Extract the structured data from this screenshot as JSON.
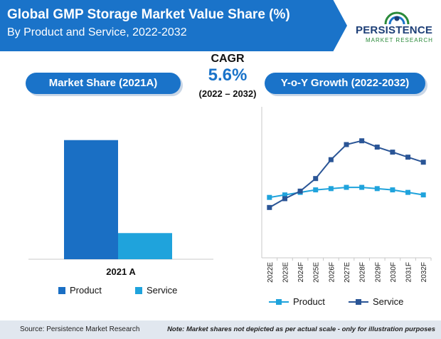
{
  "header": {
    "title": "Global GMP Storage Market Value Share (%)",
    "subtitle": "By Product and Service, 2022-2032"
  },
  "logo": {
    "top": "PERSISTENCE",
    "bottom": "MARKET RESEARCH",
    "icon": "globe-icon"
  },
  "cagr": {
    "label": "CAGR",
    "value": "5.6%",
    "period": "(2022 – 2032)"
  },
  "pills": {
    "left": "Market Share (2021A)",
    "right": "Y-o-Y Growth (2022-2032)"
  },
  "chart_data": [
    {
      "type": "bar",
      "title": "Market Share (2021A)",
      "categories": [
        "2021 A"
      ],
      "series": [
        {
          "name": "Product",
          "values": [
            0.82
          ],
          "color": "#1a6fc4"
        },
        {
          "name": "Service",
          "values": [
            0.18
          ],
          "color": "#1fa3dc"
        }
      ],
      "ylim": [
        0,
        1
      ],
      "grid": false,
      "legend": "bottom"
    },
    {
      "type": "line",
      "title": "Y-o-Y Growth (2022-2032)",
      "x": [
        "2022E",
        "2023E",
        "2024F",
        "2025E",
        "2026F",
        "2027E",
        "2028F",
        "2029F",
        "2030F",
        "2031F",
        "2032F"
      ],
      "series": [
        {
          "name": "Product",
          "values": [
            4.8,
            5.0,
            5.2,
            5.4,
            5.5,
            5.6,
            5.6,
            5.5,
            5.4,
            5.2,
            5.0
          ],
          "color": "#1fa3dc",
          "marker": "square"
        },
        {
          "name": "Service",
          "values": [
            4.0,
            4.7,
            5.3,
            6.3,
            7.8,
            9.0,
            9.3,
            8.8,
            8.4,
            8.0,
            7.6
          ],
          "color": "#2a5596",
          "marker": "square"
        }
      ],
      "ylim": [
        0,
        12
      ],
      "grid": false,
      "legend": "bottom"
    }
  ],
  "legend": {
    "product": "Product",
    "service": "Service"
  },
  "footer": {
    "source": "Source: Persistence Market Research",
    "note": "Note: Market shares not depicted as per actual scale - only for illustration purposes"
  }
}
